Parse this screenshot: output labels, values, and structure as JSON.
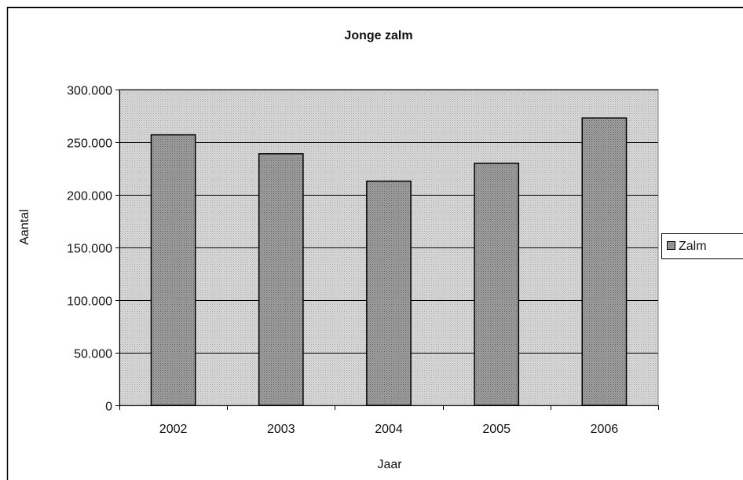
{
  "chart_data": {
    "type": "bar",
    "title": "Jonge zalm",
    "xlabel": "Jaar",
    "ylabel": "Aantal",
    "categories": [
      "2002",
      "2003",
      "2004",
      "2005",
      "2006"
    ],
    "series": [
      {
        "name": "Zalm",
        "values": [
          257000,
          239000,
          213000,
          230000,
          273000
        ]
      }
    ],
    "ylim": [
      0,
      300000
    ],
    "yticks": [
      0,
      50000,
      100000,
      150000,
      200000,
      250000,
      300000
    ],
    "ytick_labels": [
      "0",
      "50.000",
      "100.000",
      "150.000",
      "200.000",
      "250.000",
      "300.000"
    ],
    "grid": true,
    "legend_position": "right"
  }
}
